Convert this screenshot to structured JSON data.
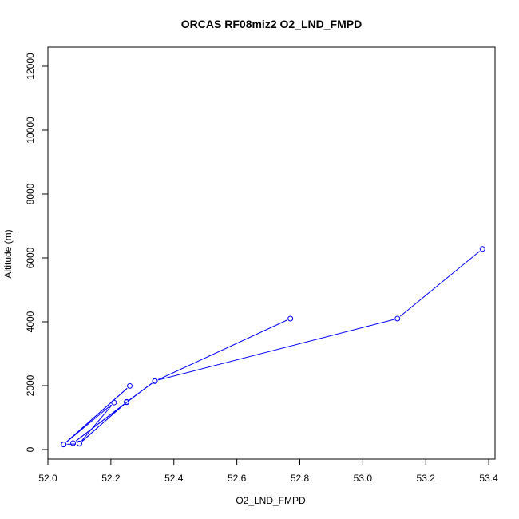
{
  "chart_data": {
    "type": "line",
    "title": "ORCAS RF08miz2 O2_LND_FMPD",
    "xlabel": "O2_LND_FMPD",
    "ylabel": "Altitude (m)",
    "xlim": [
      52.0,
      53.42
    ],
    "ylim": [
      -300,
      12600
    ],
    "xticks": [
      52.0,
      52.2,
      52.4,
      52.6,
      52.8,
      53.0,
      53.2,
      53.4
    ],
    "xtick_labels": [
      "52.0",
      "52.2",
      "52.4",
      "52.6",
      "52.8",
      "53.0",
      "53.2",
      "53.4"
    ],
    "yticks": [
      0,
      2000,
      4000,
      6000,
      8000,
      10000,
      12000
    ],
    "ytick_labels": [
      "0",
      "2000",
      "4000",
      "6000",
      "8000",
      "10000",
      "12000"
    ],
    "grid": false,
    "series": [
      {
        "color": "#0000ff",
        "marker": "open-circle",
        "points": [
          {
            "x": 53.38,
            "y": 6280
          },
          {
            "x": 53.11,
            "y": 4100
          },
          {
            "x": 52.34,
            "y": 2150
          },
          {
            "x": 52.08,
            "y": 200
          },
          {
            "x": 52.25,
            "y": 1480
          },
          {
            "x": 52.1,
            "y": 190
          },
          {
            "x": 52.21,
            "y": 1470
          },
          {
            "x": 52.05,
            "y": 160
          },
          {
            "x": 52.26,
            "y": 1990
          },
          {
            "x": 52.05,
            "y": 160
          },
          {
            "x": 52.1,
            "y": 180
          },
          {
            "x": 52.25,
            "y": 1490
          },
          {
            "x": 52.34,
            "y": 2140
          },
          {
            "x": 52.77,
            "y": 4100
          }
        ]
      }
    ]
  }
}
